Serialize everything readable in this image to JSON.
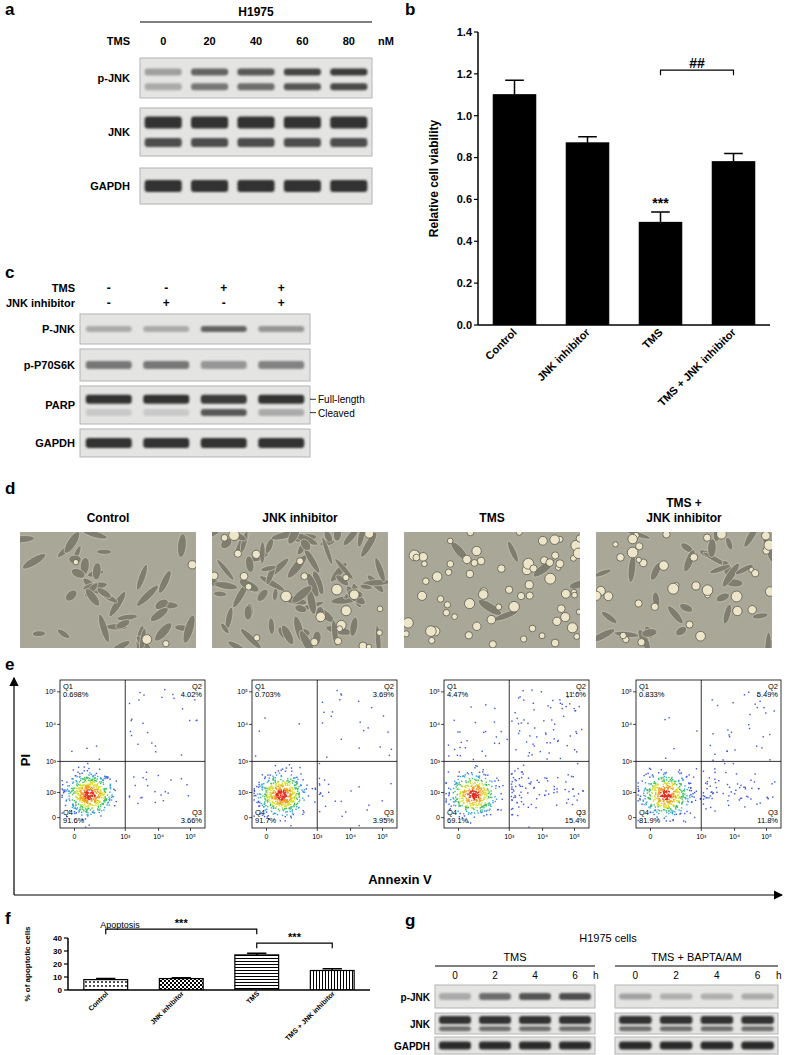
{
  "panels": {
    "a": {
      "label": "a",
      "cell_line": "H1975",
      "treatment": "TMS",
      "doses": [
        "0",
        "20",
        "40",
        "60",
        "80"
      ],
      "unit": "nM",
      "rows": [
        "p-JNK",
        "JNK",
        "GAPDH"
      ]
    },
    "b": {
      "label": "b"
    },
    "c": {
      "label": "c",
      "conditions": [
        {
          "name": "TMS",
          "signs": [
            "-",
            "-",
            "+",
            "+"
          ]
        },
        {
          "name": "JNK inhibitor",
          "signs": [
            "-",
            "+",
            "-",
            "+"
          ]
        }
      ],
      "rows": [
        "P-JNK",
        "p-P70S6K",
        "PARP",
        "GAPDH"
      ],
      "band_labels": [
        "Full-length",
        "Cleaved"
      ]
    },
    "d": {
      "label": "d",
      "titles": [
        [
          "Control"
        ],
        [
          "JNK inhibitor"
        ],
        [
          "TMS"
        ],
        [
          "TMS +",
          "JNK inhibitor"
        ]
      ]
    },
    "e": {
      "label": "e",
      "y_axis": "PI",
      "x_axis": "Annexin V",
      "y_tick_labels": [
        "10⁵",
        "10⁴",
        "10³",
        "10²",
        "0"
      ],
      "x_tick_labels": [
        "0",
        "10³",
        "10⁴",
        "10⁵"
      ],
      "plots": [
        [
          {
            "name": "Q1",
            "value": "0.698%"
          },
          {
            "name": "Q2",
            "value": "4.02%"
          },
          {
            "name": "Q3",
            "value": "3.66%"
          },
          {
            "name": "Q4",
            "value": "91.6%"
          }
        ],
        [
          {
            "name": "Q1",
            "value": "0.703%"
          },
          {
            "name": "Q2",
            "value": "3.69%"
          },
          {
            "name": "Q3",
            "value": "3.95%"
          },
          {
            "name": "Q4",
            "value": "91.7%"
          }
        ],
        [
          {
            "name": "Q1",
            "value": "4.47%"
          },
          {
            "name": "Q2",
            "value": "11.0%"
          },
          {
            "name": "Q3",
            "value": "15.4%"
          },
          {
            "name": "Q4",
            "value": "69.1%"
          }
        ],
        [
          {
            "name": "Q1",
            "value": "0.833%"
          },
          {
            "name": "Q2",
            "value": "5.49%"
          },
          {
            "name": "Q3",
            "value": "11.8%"
          },
          {
            "name": "Q4",
            "value": "81.9%"
          }
        ]
      ]
    },
    "f": {
      "label": "f"
    },
    "g": {
      "label": "g",
      "cell_line": "H1975 cells",
      "groups": [
        "TMS",
        "TMS + BAPTA/AM"
      ],
      "times": [
        "0",
        "2",
        "4",
        "6"
      ],
      "unit": "h",
      "rows": [
        "p-JNK",
        "JNK",
        "GAPDH"
      ]
    }
  },
  "chart_data": [
    {
      "type": "bar",
      "y_label": "Relative cell viability",
      "categories": [
        "Control",
        "JNK inhibitor",
        "TMS",
        "TMS + JNK inhibitor"
      ],
      "values": [
        1.1,
        0.87,
        0.49,
        0.78
      ],
      "errors": [
        0.07,
        0.03,
        0.05,
        0.04
      ],
      "color": "#000000",
      "ylim": [
        0,
        1.4
      ],
      "yticks": [
        {
          "value": 0,
          "label": "0.0"
        },
        {
          "value": 0.2,
          "label": "0.2"
        },
        {
          "value": 0.4,
          "label": "0.4"
        },
        {
          "value": 0.6,
          "label": "0.6"
        },
        {
          "value": 0.8,
          "label": "0.8"
        },
        {
          "value": 1.0,
          "label": "1.0"
        },
        {
          "value": 1.2,
          "label": "1.2"
        },
        {
          "value": 1.4,
          "label": "1.4"
        }
      ],
      "annotations": [
        {
          "text": "***",
          "categories": [
            2
          ]
        },
        {
          "text": "##",
          "categories": [
            2,
            3
          ]
        }
      ]
    },
    {
      "type": "bar",
      "title": "Apoptosis",
      "y_label": "% of apoptotic cells",
      "categories": [
        "Control",
        "JNK inhibitor",
        "TMS",
        "TMS + JNK inhibitor"
      ],
      "values": [
        8.0,
        8.8,
        27.0,
        15.0
      ],
      "errors": [
        0.8,
        0.6,
        1.3,
        1.3
      ],
      "color": "#000000",
      "ylim": [
        0,
        40
      ],
      "yticks": [
        0,
        10,
        20,
        30,
        40
      ],
      "annotations": [
        {
          "text": "***",
          "categories": [
            0,
            2
          ]
        },
        {
          "text": "***",
          "categories": [
            2,
            3
          ]
        }
      ]
    }
  ]
}
